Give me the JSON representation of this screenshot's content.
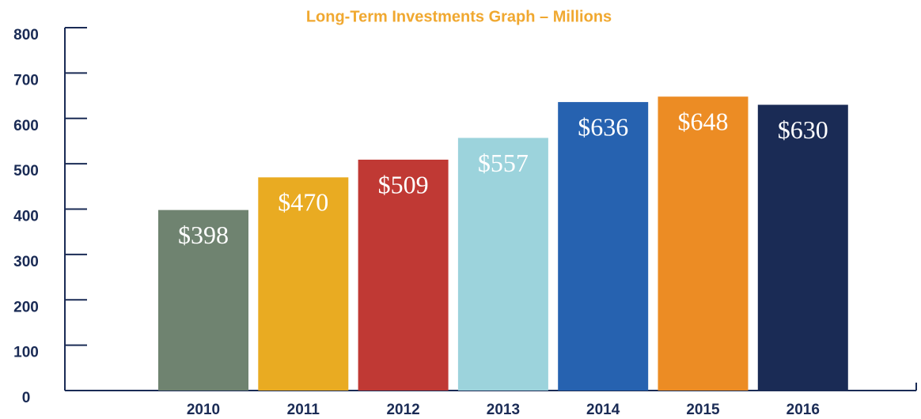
{
  "chart_data": {
    "type": "bar",
    "title": "Long-Term Investments Graph – Millions",
    "categories": [
      "2010",
      "2011",
      "2012",
      "2013",
      "2014",
      "2015",
      "2016"
    ],
    "values": [
      398,
      470,
      509,
      557,
      636,
      648,
      630
    ],
    "value_labels": [
      "$398",
      "$470",
      "$509",
      "$557",
      "$636",
      "$648",
      "$630"
    ],
    "colors": [
      "#6f8370",
      "#e9ab22",
      "#c03934",
      "#9cd3dc",
      "#2662b0",
      "#ec8c24",
      "#1a2b55"
    ],
    "ylim": [
      0,
      800
    ],
    "yticks": [
      0,
      100,
      200,
      300,
      400,
      500,
      600,
      700,
      800
    ]
  }
}
